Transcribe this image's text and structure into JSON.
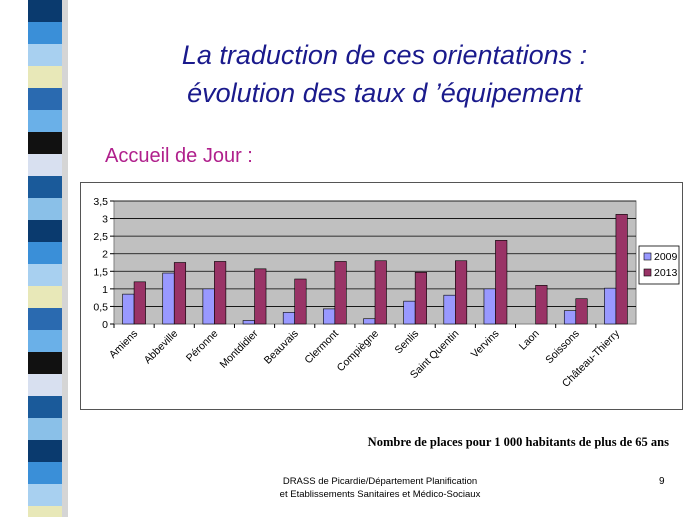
{
  "slide": {
    "title_line1": "La traduction de ces orientations :",
    "title_line2": "évolution des taux d ’équipement",
    "subtitle": "Accueil de Jour :",
    "caption": "Nombre de places pour 1 000 habitants de plus de 65 ans",
    "footer_line1": "DRASS de Picardie/Département Planification",
    "footer_line2": "et Etablissements Sanitaires et Médico-Sociaux",
    "page_number": "9"
  },
  "stripe_colors": [
    "#0a3a6e",
    "#3a8fd8",
    "#a8d0f0",
    "#e8e8b8",
    "#2a6ab0",
    "#6ab0e8",
    "#111111",
    "#d8e0f0",
    "#1a5a9a",
    "#8ac0e8"
  ],
  "chart_data": {
    "type": "bar",
    "categories": [
      "Amiens",
      "Abbeville",
      "Péronne",
      "Montdidier",
      "Beauvais",
      "Clermont",
      "Compiègne",
      "Senlis",
      "Saint Quentin",
      "Vervins",
      "Laon",
      "Soissons",
      "Château-Thierry"
    ],
    "series": [
      {
        "name": "2009",
        "color": "#9999ff",
        "values": [
          0.85,
          1.45,
          1.0,
          0.1,
          0.33,
          0.43,
          0.15,
          0.65,
          0.82,
          1.0,
          0,
          0.38,
          1.02
        ]
      },
      {
        "name": "2013",
        "color": "#993366",
        "values": [
          1.2,
          1.75,
          1.78,
          1.57,
          1.28,
          1.78,
          1.8,
          1.47,
          1.8,
          2.38,
          1.1,
          0.72,
          3.12
        ]
      }
    ],
    "ylim": [
      0,
      3.5
    ],
    "yticks": [
      "0",
      "0,5",
      "1",
      "1,5",
      "2",
      "2,5",
      "3",
      "3,5"
    ],
    "grid": true,
    "legend_position": "right",
    "plot_background": "#c0c0c0"
  }
}
